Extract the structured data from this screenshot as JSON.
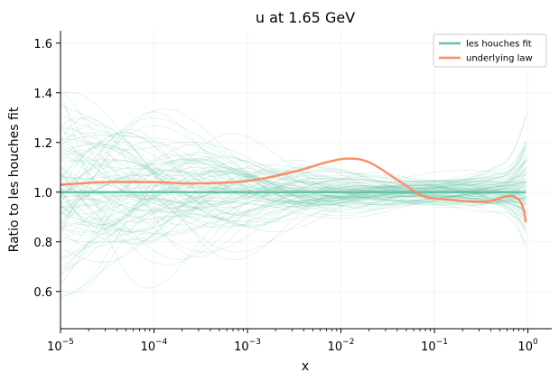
{
  "chart_data": {
    "type": "line",
    "title": "u at 1.65 GeV",
    "xlabel": "x",
    "ylabel": "Ratio to les houches fit",
    "xscale": "log",
    "xlim": [
      1e-05,
      1.8
    ],
    "ylim": [
      0.45,
      1.65
    ],
    "xticks": [
      {
        "value": 1e-05,
        "base": "10",
        "exp": "−5"
      },
      {
        "value": 0.0001,
        "base": "10",
        "exp": "−4"
      },
      {
        "value": 0.001,
        "base": "10",
        "exp": "−3"
      },
      {
        "value": 0.01,
        "base": "10",
        "exp": "−2"
      },
      {
        "value": 0.1,
        "base": "10",
        "exp": "−1"
      },
      {
        "value": 1,
        "base": "10",
        "exp": "0"
      }
    ],
    "yticks": [
      "0.6",
      "0.8",
      "1.0",
      "1.2",
      "1.4",
      "1.6"
    ],
    "legend_position": "top-right",
    "colors": {
      "les_houches_fit": "#66c2a5",
      "underlying_law": "#fc8d62",
      "replicas": "#66c2a5"
    },
    "series": [
      {
        "name": "les houches fit",
        "x": [
          1e-05,
          0.0001,
          0.001,
          0.01,
          0.1,
          0.5,
          0.95
        ],
        "y": [
          1.0,
          1.0,
          1.0,
          1.0,
          1.0,
          1.0,
          1.0
        ]
      },
      {
        "name": "underlying law",
        "x": [
          1e-05,
          3e-05,
          0.0001,
          0.0003,
          0.001,
          0.003,
          0.007,
          0.012,
          0.02,
          0.04,
          0.07,
          0.1,
          0.2,
          0.35,
          0.5,
          0.65,
          0.8,
          0.9,
          0.95
        ],
        "y": [
          1.03,
          1.04,
          1.04,
          1.035,
          1.045,
          1.08,
          1.12,
          1.135,
          1.12,
          1.05,
          0.99,
          0.975,
          0.965,
          0.96,
          0.975,
          0.985,
          0.97,
          0.93,
          0.88
        ]
      }
    ],
    "replica_band": {
      "count": 100,
      "center": 1.0,
      "spread_at_low_x": 0.55,
      "spread_at_mid_x": 0.12,
      "spread_near_x1": 0.3
    }
  }
}
